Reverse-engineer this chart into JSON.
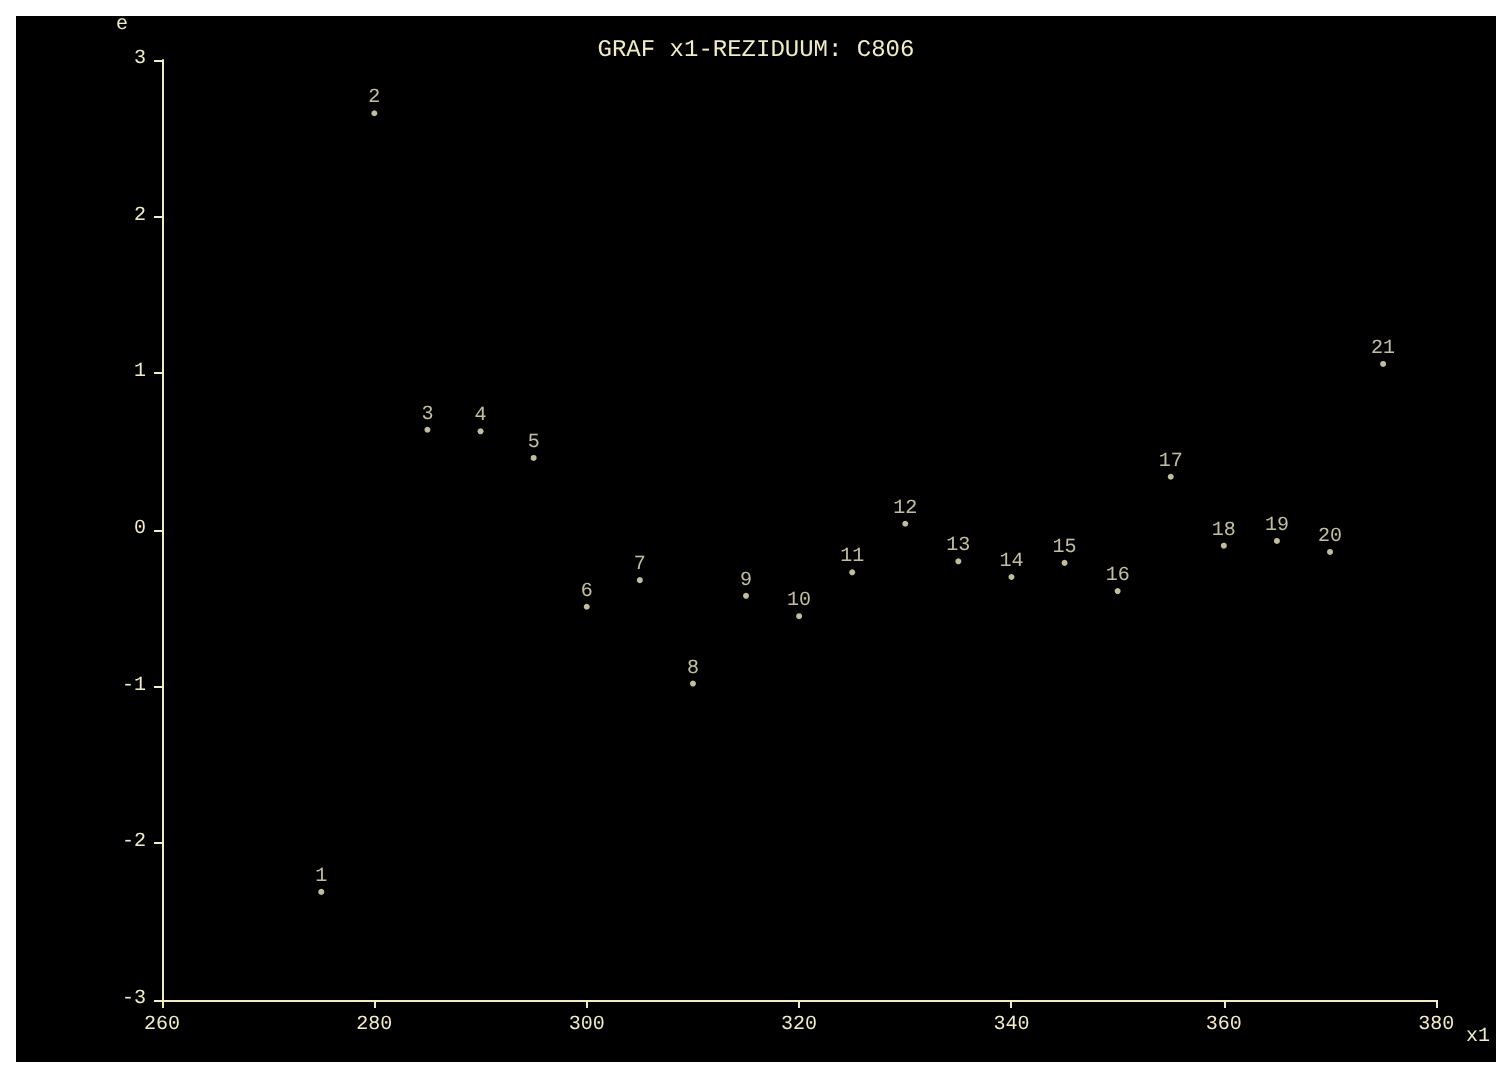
{
  "chart_data": {
    "type": "scatter",
    "title": "GRAF x1-REZIDUUM: C806",
    "xlabel": "x1",
    "ylabel": "e",
    "x": [
      275,
      280,
      285,
      290,
      295,
      300,
      305,
      310,
      315,
      320,
      325,
      330,
      335,
      340,
      345,
      350,
      355,
      360,
      365,
      370,
      375
    ],
    "values": [
      -2.31,
      2.66,
      0.64,
      0.63,
      0.46,
      -0.49,
      -0.32,
      -0.98,
      -0.42,
      -0.55,
      -0.27,
      0.04,
      -0.2,
      -0.3,
      -0.21,
      -0.39,
      0.34,
      -0.1,
      -0.07,
      -0.14,
      1.06
    ],
    "annotations": [
      {
        "text": "1",
        "x": 275,
        "y": -2.31
      },
      {
        "text": "2",
        "x": 280,
        "y": 2.66
      },
      {
        "text": "3",
        "x": 285,
        "y": 0.64
      },
      {
        "text": "4",
        "x": 290,
        "y": 0.63
      },
      {
        "text": "5",
        "x": 295,
        "y": 0.46
      },
      {
        "text": "6",
        "x": 300,
        "y": -0.49
      },
      {
        "text": "7",
        "x": 305,
        "y": -0.32
      },
      {
        "text": "8",
        "x": 310,
        "y": -0.98
      },
      {
        "text": "9",
        "x": 315,
        "y": -0.42
      },
      {
        "text": "10",
        "x": 320,
        "y": -0.55
      },
      {
        "text": "11",
        "x": 325,
        "y": -0.27
      },
      {
        "text": "12",
        "x": 330,
        "y": 0.04
      },
      {
        "text": "13",
        "x": 335,
        "y": -0.2
      },
      {
        "text": "14",
        "x": 340,
        "y": -0.3
      },
      {
        "text": "15",
        "x": 345,
        "y": -0.21
      },
      {
        "text": "16",
        "x": 350,
        "y": -0.39
      },
      {
        "text": "17",
        "x": 355,
        "y": 0.34
      },
      {
        "text": "18",
        "x": 360,
        "y": -0.1
      },
      {
        "text": "19",
        "x": 365,
        "y": -0.07
      },
      {
        "text": "20",
        "x": 370,
        "y": -0.14
      },
      {
        "text": "21",
        "x": 375,
        "y": 1.06
      }
    ],
    "color": "#f2ecc4",
    "marker": "circle",
    "xlim": [
      260,
      380
    ],
    "xticks": [
      260,
      280,
      300,
      320,
      340,
      360,
      380
    ],
    "ylim": [
      -3,
      3
    ],
    "yticks": [
      -3,
      -2,
      -1,
      0,
      1,
      2,
      3
    ],
    "grid": false
  }
}
